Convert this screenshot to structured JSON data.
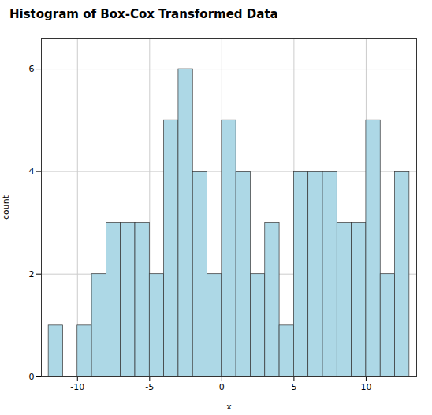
{
  "chart_data": {
    "type": "histogram",
    "title": "Histogram of Box-Cox Transformed Data",
    "x_label": "x",
    "y_label": "count",
    "bins": [
      -12,
      -11,
      -10,
      -9,
      -8,
      -7,
      -6,
      -5,
      -4,
      -3,
      -2,
      -1,
      0,
      1,
      2,
      3,
      4,
      5,
      6,
      7,
      8,
      9,
      10,
      11,
      12,
      13
    ],
    "values": [
      1,
      0,
      1,
      2,
      3,
      3,
      3,
      2,
      5,
      6,
      4,
      2,
      5,
      4,
      2,
      3,
      1,
      4,
      4,
      4,
      3,
      3,
      5,
      2,
      4
    ],
    "color": "#add8e6",
    "xlim": [
      -12.5,
      13.5
    ],
    "xticks": [
      -10,
      -5,
      0,
      5,
      10
    ],
    "ylim": [
      0,
      6.6
    ],
    "yticks": [
      0,
      2,
      4,
      6
    ],
    "grid": true
  }
}
